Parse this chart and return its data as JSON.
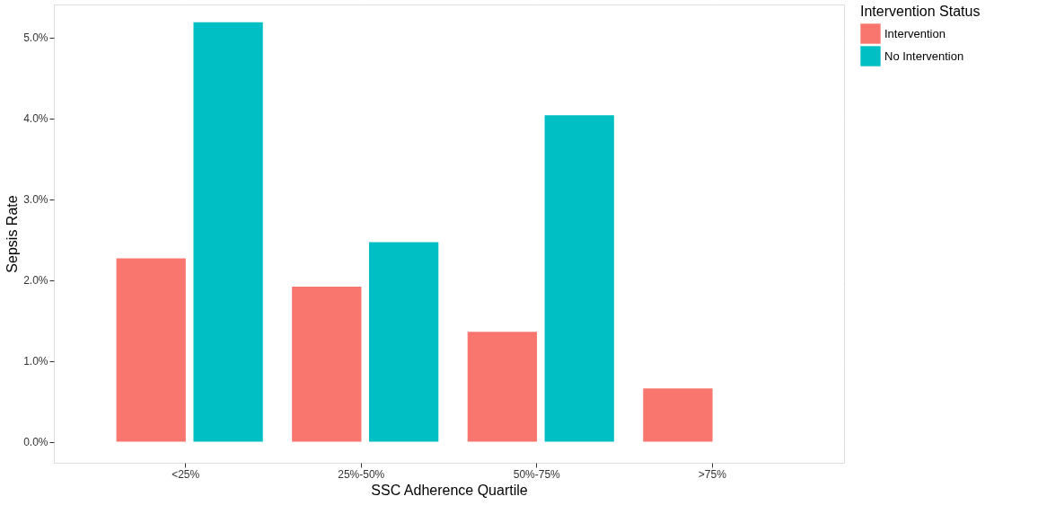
{
  "chart_data": {
    "type": "bar",
    "xlabel": "SSC Adherence Quartile",
    "ylabel": "Sepsis Rate",
    "legend_title": "Intervention Status",
    "categories": [
      "<25%",
      "25%-50%",
      "50%-75%",
      ">75%"
    ],
    "series": [
      {
        "name": "Intervention",
        "color": "#f8766d",
        "values": [
          2.27,
          1.92,
          1.36,
          0.66
        ]
      },
      {
        "name": "No Intervention",
        "color": "#00bfc4",
        "values": [
          5.19,
          2.47,
          4.04,
          null
        ]
      }
    ],
    "ylim": [
      -0.26,
      5.41
    ],
    "yticks": [
      {
        "value": 0,
        "label": "0.0%"
      },
      {
        "value": 1,
        "label": "1.0%"
      },
      {
        "value": 2,
        "label": "2.0%"
      },
      {
        "value": 3,
        "label": "3.0%"
      },
      {
        "value": 4,
        "label": "4.0%"
      },
      {
        "value": 5,
        "label": "5.0%"
      }
    ],
    "grid": true,
    "legend": "right"
  }
}
